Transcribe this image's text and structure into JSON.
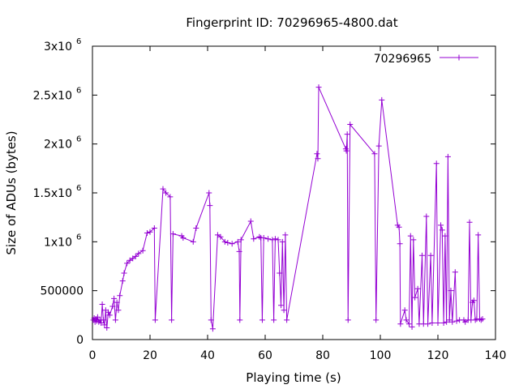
{
  "chart_data": {
    "type": "line",
    "title": "Fingerprint ID: 70296965-4800.dat",
    "xlabel": "Playing time (s)",
    "ylabel": "Size of ADUs (bytes)",
    "xlim": [
      0,
      140
    ],
    "ylim": [
      0,
      3000000
    ],
    "x_ticks": [
      0,
      20,
      40,
      60,
      80,
      100,
      120,
      140
    ],
    "y_ticks": [
      {
        "value": 0,
        "label": "0",
        "exp": ""
      },
      {
        "value": 500000,
        "label": "500000",
        "exp": ""
      },
      {
        "value": 1000000,
        "label": "1x10",
        "exp": "6"
      },
      {
        "value": 1500000,
        "label": "1.5x10",
        "exp": "6"
      },
      {
        "value": 2000000,
        "label": "2x10",
        "exp": "6"
      },
      {
        "value": 2500000,
        "label": "2.5x10",
        "exp": "6"
      },
      {
        "value": 3000000,
        "label": "3x10",
        "exp": "6"
      }
    ],
    "grid": false,
    "legend_position": "top-right",
    "colors": {
      "series": "#9400d3",
      "axes": "#000000"
    },
    "series": [
      {
        "name": "70296965",
        "points": [
          [
            0.3,
            200000
          ],
          [
            0.6,
            220000
          ],
          [
            0.9,
            180000
          ],
          [
            1.2,
            210000
          ],
          [
            1.5,
            190000
          ],
          [
            1.8,
            230000
          ],
          [
            2.2,
            180000
          ],
          [
            2.6,
            200000
          ],
          [
            3.0,
            170000
          ],
          [
            3.4,
            360000
          ],
          [
            3.8,
            200000
          ],
          [
            4.2,
            150000
          ],
          [
            4.6,
            300000
          ],
          [
            5.0,
            120000
          ],
          [
            5.5,
            280000
          ],
          [
            6.0,
            250000
          ],
          [
            7.0,
            340000
          ],
          [
            7.5,
            420000
          ],
          [
            8.0,
            200000
          ],
          [
            8.5,
            380000
          ],
          [
            9.0,
            300000
          ],
          [
            9.5,
            450000
          ],
          [
            10.5,
            600000
          ],
          [
            11.0,
            680000
          ],
          [
            12.0,
            780000
          ],
          [
            13.0,
            810000
          ],
          [
            14.0,
            830000
          ],
          [
            15.0,
            850000
          ],
          [
            16.0,
            880000
          ],
          [
            17.5,
            910000
          ],
          [
            19.0,
            1090000
          ],
          [
            20.0,
            1100000
          ],
          [
            21.5,
            1140000
          ],
          [
            21.8,
            200000
          ],
          [
            24.5,
            1540000
          ],
          [
            25.5,
            1500000
          ],
          [
            27.0,
            1460000
          ],
          [
            27.5,
            200000
          ],
          [
            28.0,
            1080000
          ],
          [
            31.0,
            1060000
          ],
          [
            31.5,
            1040000
          ],
          [
            35.0,
            1000000
          ],
          [
            36.0,
            1140000
          ],
          [
            40.5,
            1500000
          ],
          [
            40.8,
            1370000
          ],
          [
            41.2,
            200000
          ],
          [
            41.8,
            110000
          ],
          [
            43.5,
            1070000
          ],
          [
            44.5,
            1050000
          ],
          [
            46.0,
            1000000
          ],
          [
            47.0,
            990000
          ],
          [
            48.5,
            980000
          ],
          [
            50.5,
            1000000
          ],
          [
            51.0,
            900000
          ],
          [
            51.2,
            200000
          ],
          [
            51.6,
            1020000
          ],
          [
            55.0,
            1210000
          ],
          [
            56.0,
            1030000
          ],
          [
            58.0,
            1050000
          ],
          [
            58.5,
            1040000
          ],
          [
            59.0,
            200000
          ],
          [
            59.5,
            1040000
          ],
          [
            61.0,
            1030000
          ],
          [
            62.5,
            1020000
          ],
          [
            63.0,
            200000
          ],
          [
            63.5,
            1030000
          ],
          [
            64.5,
            1020000
          ],
          [
            65.0,
            680000
          ],
          [
            65.5,
            350000
          ],
          [
            66.0,
            1000000
          ],
          [
            66.5,
            300000
          ],
          [
            67.0,
            1070000
          ],
          [
            67.5,
            200000
          ],
          [
            78.0,
            1900000
          ],
          [
            78.3,
            1850000
          ],
          [
            78.6,
            2580000
          ],
          [
            88.0,
            1950000
          ],
          [
            88.2,
            1930000
          ],
          [
            88.5,
            2100000
          ],
          [
            88.8,
            200000
          ],
          [
            89.5,
            2200000
          ],
          [
            98.0,
            1900000
          ],
          [
            98.5,
            200000
          ],
          [
            99.5,
            1980000
          ],
          [
            100.5,
            2450000
          ],
          [
            106.0,
            1170000
          ],
          [
            106.5,
            1150000
          ],
          [
            106.8,
            980000
          ],
          [
            107.0,
            160000
          ],
          [
            108.5,
            300000
          ],
          [
            109.0,
            200000
          ],
          [
            110.0,
            160000
          ],
          [
            110.5,
            1060000
          ],
          [
            111.0,
            130000
          ],
          [
            111.5,
            1020000
          ],
          [
            112.0,
            430000
          ],
          [
            113.0,
            520000
          ],
          [
            113.5,
            160000
          ],
          [
            114.5,
            860000
          ],
          [
            115.0,
            160000
          ],
          [
            116.0,
            1260000
          ],
          [
            116.5,
            160000
          ],
          [
            117.5,
            860000
          ],
          [
            118.0,
            170000
          ],
          [
            119.5,
            1800000
          ],
          [
            120.0,
            170000
          ],
          [
            121.0,
            1170000
          ],
          [
            121.5,
            1120000
          ],
          [
            122.0,
            170000
          ],
          [
            122.5,
            1060000
          ],
          [
            123.0,
            180000
          ],
          [
            123.5,
            1870000
          ],
          [
            124.0,
            200000
          ],
          [
            124.5,
            500000
          ],
          [
            125.0,
            180000
          ],
          [
            126.0,
            690000
          ],
          [
            126.5,
            190000
          ],
          [
            127.5,
            200000
          ],
          [
            129.0,
            200000
          ],
          [
            129.5,
            180000
          ],
          [
            130.5,
            200000
          ],
          [
            131.0,
            1200000
          ],
          [
            131.5,
            200000
          ],
          [
            132.0,
            380000
          ],
          [
            132.5,
            400000
          ],
          [
            133.0,
            200000
          ],
          [
            133.5,
            210000
          ],
          [
            134.0,
            1070000
          ],
          [
            134.5,
            210000
          ],
          [
            135.0,
            200000
          ],
          [
            135.5,
            210000
          ]
        ]
      }
    ]
  }
}
